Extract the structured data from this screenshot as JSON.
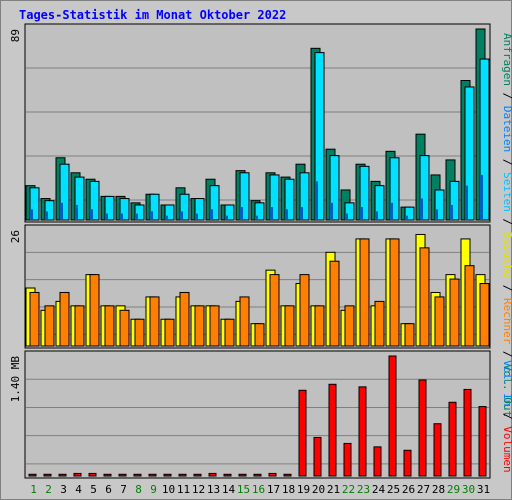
{
  "title": "Tages-Statistik im Monat Oktober 2022",
  "colors": {
    "background": "#c0c0c0",
    "grid": "#808080",
    "anfragen": "#008060",
    "dateien": "#00e0ff",
    "seiten": "#00c0ff",
    "besuche": "#ffff00",
    "rechner": "#ff8000",
    "vol_in": "#0080ff",
    "vol_out": "#ff0000",
    "volumen": "#ff0000",
    "weekend": "#008000",
    "weekday": "#000000"
  },
  "right_labels": {
    "top": [
      {
        "text": "Anfragen",
        "color": "#008060"
      },
      {
        "text": " / ",
        "color": "#000000"
      },
      {
        "text": "Dateien",
        "color": "#0080ff"
      },
      {
        "text": " / ",
        "color": "#000000"
      },
      {
        "text": "Seiten",
        "color": "#00c0ff"
      },
      {
        "text": " / ",
        "color": "#000000"
      },
      {
        "text": "Besuche",
        "color": "#e0e000"
      },
      {
        "text": " / ",
        "color": "#000000"
      },
      {
        "text": "Rechner",
        "color": "#ff8000"
      },
      {
        "text": " / ",
        "color": "#000000"
      },
      {
        "text": "Vol. Out",
        "color": "#008060"
      }
    ],
    "bottom": [
      {
        "text": "Vol. In",
        "color": "#0080ff"
      },
      {
        "text": " / ",
        "color": "#000000"
      },
      {
        "text": "Volumen",
        "color": "#ff0000"
      }
    ]
  },
  "chart_data": [
    {
      "type": "bar",
      "panel": "hits",
      "ymax_label": "89",
      "ylim": [
        0,
        89
      ],
      "categories": [
        "1",
        "2",
        "3",
        "4",
        "5",
        "6",
        "7",
        "8",
        "9",
        "10",
        "11",
        "12",
        "13",
        "14",
        "15",
        "16",
        "17",
        "18",
        "19",
        "20",
        "21",
        "22",
        "23",
        "24",
        "25",
        "26",
        "27",
        "28",
        "29",
        "30",
        "31"
      ],
      "weekend_days": [
        1,
        2,
        8,
        9,
        15,
        16,
        22,
        23,
        29,
        30
      ],
      "series": [
        {
          "key": "anfragen",
          "values": [
            16,
            10,
            29,
            22,
            19,
            11,
            11,
            8,
            12,
            7,
            15,
            10,
            19,
            7,
            23,
            9,
            22,
            20,
            26,
            80,
            33,
            14,
            26,
            18,
            32,
            6,
            40,
            21,
            28,
            65,
            89
          ]
        },
        {
          "key": "dateien",
          "values": [
            15,
            9,
            26,
            20,
            18,
            11,
            10,
            7,
            12,
            7,
            12,
            10,
            16,
            7,
            22,
            8,
            21,
            19,
            22,
            78,
            30,
            8,
            25,
            16,
            29,
            6,
            30,
            14,
            18,
            62,
            75
          ]
        },
        {
          "key": "seiten",
          "values": [
            5,
            4,
            8,
            7,
            5,
            3,
            3,
            3,
            4,
            2,
            4,
            3,
            5,
            2,
            6,
            2,
            6,
            5,
            6,
            18,
            8,
            3,
            6,
            4,
            8,
            2,
            10,
            5,
            7,
            16,
            21
          ]
        }
      ]
    },
    {
      "type": "bar",
      "panel": "visits",
      "ymax_label": "26",
      "ylim": [
        0,
        26
      ],
      "categories": [
        "1",
        "2",
        "3",
        "4",
        "5",
        "6",
        "7",
        "8",
        "9",
        "10",
        "11",
        "12",
        "13",
        "14",
        "15",
        "16",
        "17",
        "18",
        "19",
        "20",
        "21",
        "22",
        "23",
        "24",
        "25",
        "26",
        "27",
        "28",
        "29",
        "30",
        "31"
      ],
      "series": [
        {
          "key": "besuche",
          "values": [
            13,
            8,
            10,
            9,
            16,
            9,
            9,
            6,
            11,
            6,
            11,
            9,
            9,
            6,
            10,
            5,
            17,
            9,
            14,
            9,
            21,
            8,
            24,
            9,
            24,
            5,
            25,
            12,
            16,
            24,
            16
          ]
        },
        {
          "key": "rechner",
          "values": [
            12,
            9,
            12,
            9,
            16,
            9,
            8,
            6,
            11,
            6,
            12,
            9,
            9,
            6,
            11,
            5,
            16,
            9,
            16,
            9,
            19,
            9,
            24,
            10,
            24,
            5,
            22,
            11,
            15,
            18,
            14
          ]
        }
      ]
    },
    {
      "type": "bar",
      "panel": "volume",
      "ymax_label": "1.40 MB",
      "ylim": [
        0,
        1.4
      ],
      "unit": "MB",
      "categories": [
        "1",
        "2",
        "3",
        "4",
        "5",
        "6",
        "7",
        "8",
        "9",
        "10",
        "11",
        "12",
        "13",
        "14",
        "15",
        "16",
        "17",
        "18",
        "19",
        "20",
        "21",
        "22",
        "23",
        "24",
        "25",
        "26",
        "27",
        "28",
        "29",
        "30",
        "31"
      ],
      "series": [
        {
          "key": "volumen",
          "values": [
            0.02,
            0.02,
            0.02,
            0.03,
            0.03,
            0.02,
            0.02,
            0.02,
            0.02,
            0.02,
            0.02,
            0.02,
            0.03,
            0.02,
            0.02,
            0.02,
            0.03,
            0.02,
            1.0,
            0.45,
            1.07,
            0.38,
            1.04,
            0.34,
            1.4,
            0.3,
            1.12,
            0.61,
            0.86,
            1.01,
            0.81
          ]
        }
      ]
    }
  ]
}
